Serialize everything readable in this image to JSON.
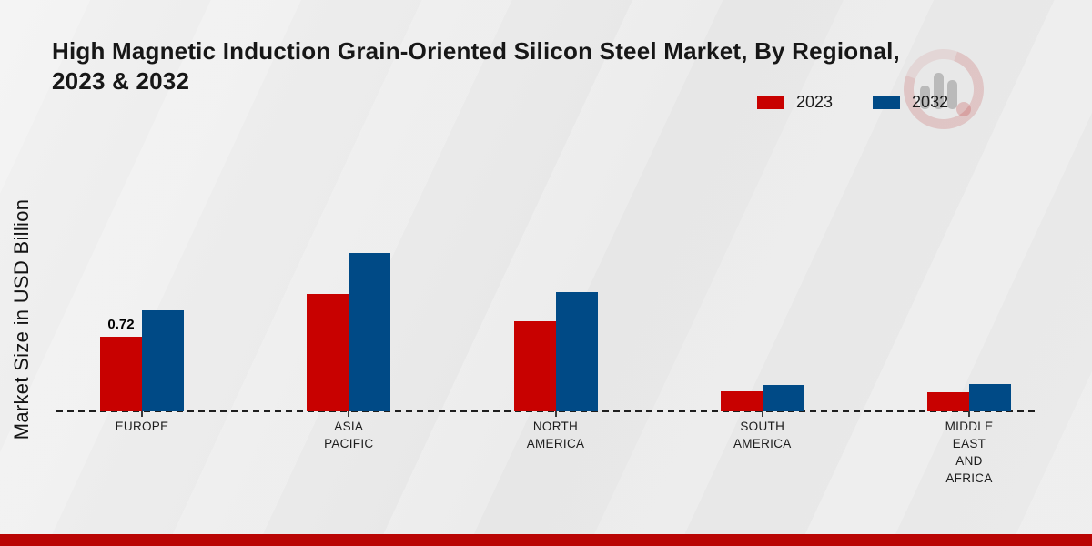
{
  "header": {
    "title_lines": [
      "High Magnetic Induction Grain-Oriented Silicon Steel Market, By Regional,",
      "2023 & 2032"
    ]
  },
  "legend": {
    "position": "top-right",
    "items": [
      {
        "label": "2023",
        "color": "#c80100"
      },
      {
        "label": "2032",
        "color": "#004a86"
      }
    ]
  },
  "y_axis_label": "Market Size in USD Billion",
  "watermark_icon": "bar-chart-magnifier-logo",
  "footer": {
    "color": "#b90504"
  },
  "colors": {
    "bar_red": "#c80100",
    "bar_blue": "#004a86",
    "baseline": "#1e1e1e"
  },
  "chart_data": {
    "type": "bar",
    "title": "High Magnetic Induction Grain-Oriented Silicon Steel Market, By Regional, 2023 & 2032",
    "xlabel": "",
    "ylabel": "Market Size in USD Billion",
    "categories": [
      "EUROPE",
      "ASIA PACIFIC",
      "NORTH AMERICA",
      "SOUTH AMERICA",
      "MIDDLE EAST AND AFRICA"
    ],
    "series": [
      {
        "name": "2023",
        "color": "#c80100",
        "values": [
          0.72,
          1.13,
          0.87,
          0.19,
          0.18
        ]
      },
      {
        "name": "2032",
        "color": "#004a86",
        "values": [
          0.97,
          1.53,
          1.15,
          0.25,
          0.26
        ]
      }
    ],
    "data_labels": [
      {
        "series_index": 0,
        "category_index": 0,
        "text": "0.72"
      }
    ],
    "ylim": [
      0,
      1.6
    ],
    "grid": false,
    "legend_position": "top-right",
    "baseline_style": "dashed"
  }
}
